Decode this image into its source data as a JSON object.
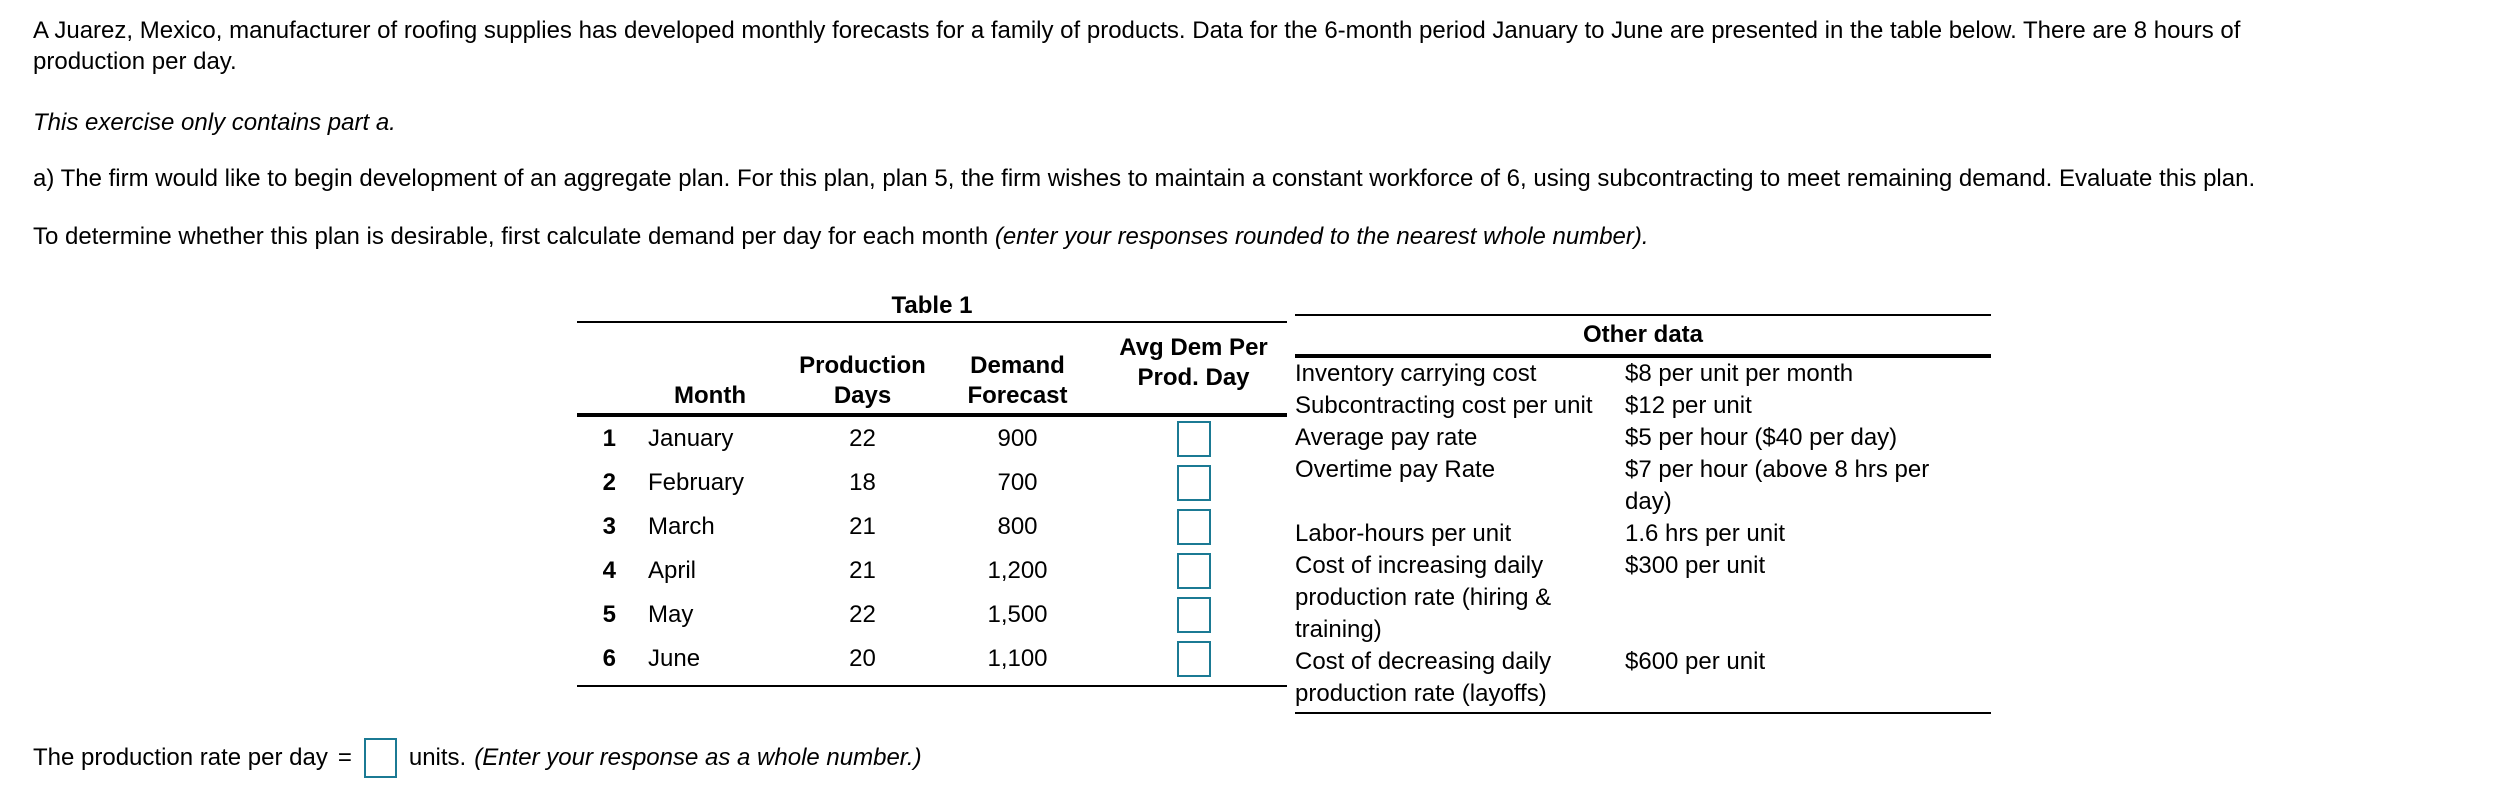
{
  "intro": {
    "paragraph": "A Juarez, Mexico, manufacturer of roofing supplies has developed monthly forecasts for a family of products. Data for the 6-month period January to June are presented in the table below. There are 8 hours of\nproduction per day.",
    "note": "This exercise only contains part a.",
    "part_a": "a) The firm would like to begin development of an aggregate plan. For this plan, plan 5, the firm wishes to maintain a constant workforce of 6, using subcontracting to meet remaining demand. Evaluate this plan.",
    "instruction_prefix": "To determine whether this plan is desirable, first calculate demand per day for each month ",
    "instruction_italic": "(enter your responses rounded to the nearest whole number)."
  },
  "table1": {
    "title": "Table 1",
    "headers": {
      "month": "Month",
      "production_days": "Production\nDays",
      "demand_forecast": "Demand\nForecast",
      "avg_dem_per_prod_day": "Avg Dem Per\nProd. Day"
    },
    "rows": [
      {
        "num": "1",
        "month": "January",
        "days": "22",
        "forecast": "900",
        "avg_input": ""
      },
      {
        "num": "2",
        "month": "February",
        "days": "18",
        "forecast": "700",
        "avg_input": ""
      },
      {
        "num": "3",
        "month": "March",
        "days": "21",
        "forecast": "800",
        "avg_input": ""
      },
      {
        "num": "4",
        "month": "April",
        "days": "21",
        "forecast": "1,200",
        "avg_input": ""
      },
      {
        "num": "5",
        "month": "May",
        "days": "22",
        "forecast": "1,500",
        "avg_input": ""
      },
      {
        "num": "6",
        "month": "June",
        "days": "20",
        "forecast": "1,100",
        "avg_input": ""
      }
    ]
  },
  "other_data": {
    "title": "Other data",
    "rows": [
      {
        "label": "Inventory carrying cost",
        "value": "$8 per unit per month"
      },
      {
        "label": "Subcontracting cost per unit",
        "value": "$12 per unit"
      },
      {
        "label": "Average pay rate",
        "value": "$5 per hour ($40 per day)"
      },
      {
        "label": "Overtime pay Rate",
        "value": "$7 per hour (above 8 hrs per\nday)"
      },
      {
        "label": "Labor-hours per unit",
        "value": "1.6 hrs per unit"
      },
      {
        "label": "Cost of increasing daily\nproduction rate (hiring &\ntraining)",
        "value": "$300 per unit"
      },
      {
        "label": "Cost of decreasing daily\nproduction rate (layoffs)",
        "value": "$600 per unit"
      }
    ]
  },
  "answer_line": {
    "prefix": "The production rate per day",
    "equals": "=",
    "input_value": "",
    "units": "units.",
    "italic_note": "(Enter your response as a whole number.)"
  },
  "colors": {
    "input_border": "#1b7a94",
    "text": "#000000",
    "background": "#ffffff"
  }
}
